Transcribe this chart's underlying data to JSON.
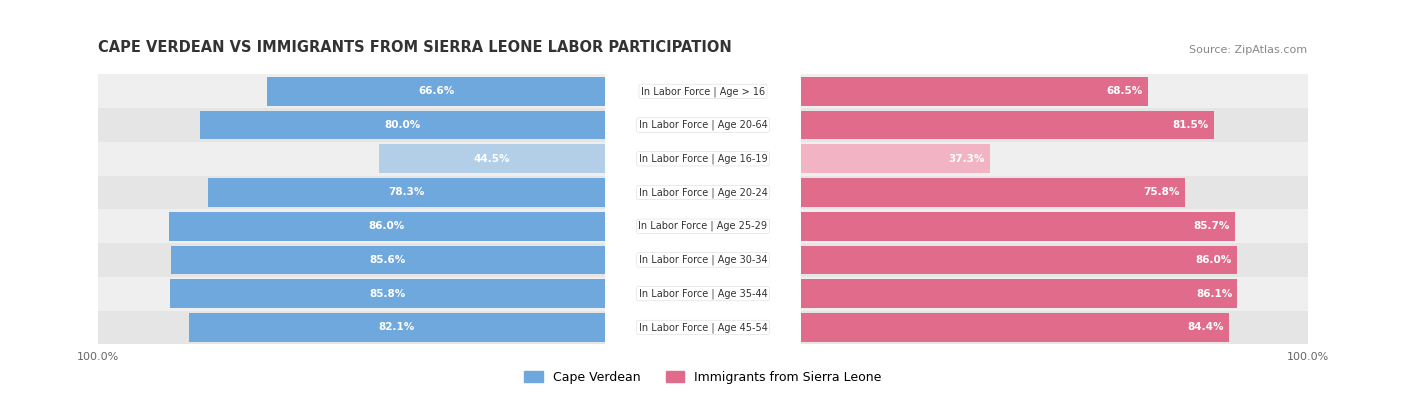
{
  "title": "CAPE VERDEAN VS IMMIGRANTS FROM SIERRA LEONE LABOR PARTICIPATION",
  "source": "Source: ZipAtlas.com",
  "categories": [
    "In Labor Force | Age > 16",
    "In Labor Force | Age 20-64",
    "In Labor Force | Age 16-19",
    "In Labor Force | Age 20-24",
    "In Labor Force | Age 25-29",
    "In Labor Force | Age 30-34",
    "In Labor Force | Age 35-44",
    "In Labor Force | Age 45-54"
  ],
  "cape_verdean": [
    66.6,
    80.0,
    44.5,
    78.3,
    86.0,
    85.6,
    85.8,
    82.1
  ],
  "sierra_leone": [
    68.5,
    81.5,
    37.3,
    75.8,
    85.7,
    86.0,
    86.1,
    84.4
  ],
  "blue_color": "#6fa8dc",
  "blue_light": "#b3cfe8",
  "pink_color": "#e06b8a",
  "pink_light": "#f2b3c5",
  "row_bg_odd": "#efefef",
  "row_bg_even": "#e5e5e5",
  "max_val": 100.0,
  "legend_blue": "Cape Verdean",
  "legend_pink": "Immigrants from Sierra Leone"
}
